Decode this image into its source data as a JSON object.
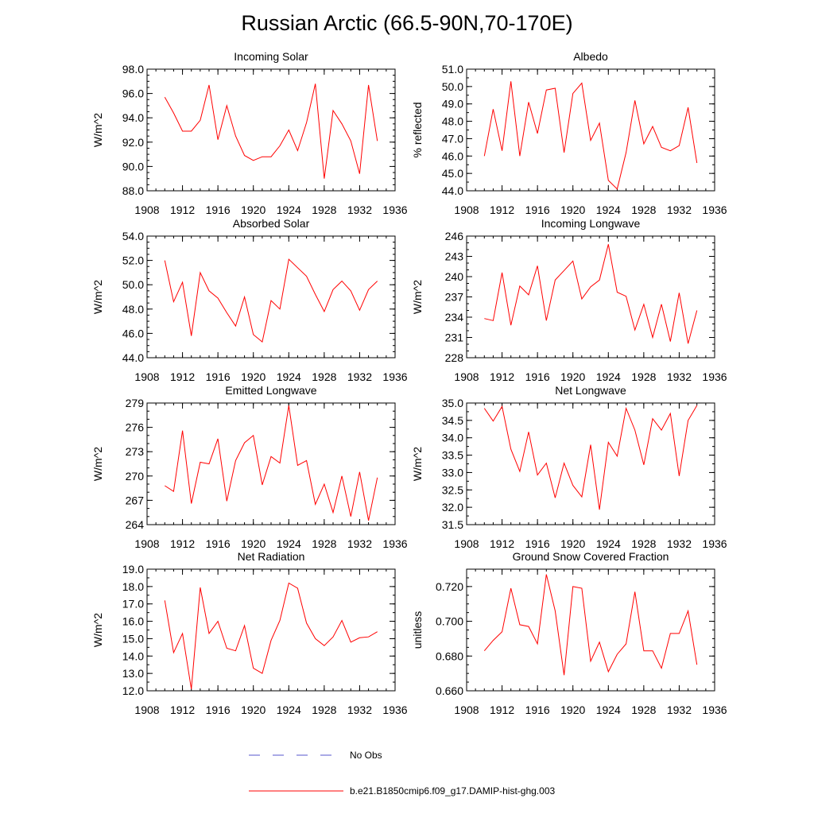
{
  "title": "Russian Arctic (66.5-90N,70-170E)",
  "legend": {
    "items": [
      {
        "label": "No Obs",
        "color": "#5555cc",
        "style": "dashed"
      },
      {
        "label": "b.e21.B1850cmip6.f09_g17.DAMIP-hist-ghg.003",
        "color": "#ff0000",
        "style": "solid"
      }
    ]
  },
  "chart_data": [
    {
      "type": "line",
      "title": "Incoming Solar",
      "xlabel": "",
      "ylabel": "W/m^2",
      "xlim": [
        1908,
        1936
      ],
      "ylim": [
        88,
        98
      ],
      "ytick_decimals": 1,
      "xticks": [
        1908,
        1912,
        1916,
        1920,
        1924,
        1928,
        1932,
        1936
      ],
      "yticks": [
        88,
        90,
        92,
        94,
        96,
        98
      ],
      "yticks_minor_step": 0.5,
      "series": [
        {
          "color": "#ff0000",
          "x": [
            1910,
            1911,
            1912,
            1913,
            1914,
            1915,
            1916,
            1917,
            1918,
            1919,
            1920,
            1921,
            1922,
            1923,
            1924,
            1925,
            1926,
            1927,
            1928,
            1929,
            1930,
            1931,
            1932,
            1933,
            1934
          ],
          "values": [
            95.7,
            94.4,
            92.9,
            92.9,
            93.8,
            96.7,
            92.2,
            95.0,
            92.5,
            90.9,
            90.5,
            90.8,
            90.8,
            91.7,
            93.0,
            91.3,
            93.6,
            96.8,
            89.0,
            94.6,
            93.5,
            92.1,
            89.4,
            96.7,
            92.1
          ]
        }
      ]
    },
    {
      "type": "line",
      "title": "Albedo",
      "xlabel": "",
      "ylabel": "% reflected",
      "xlim": [
        1908,
        1936
      ],
      "ylim": [
        44,
        51
      ],
      "ytick_decimals": 1,
      "xticks": [
        1908,
        1912,
        1916,
        1920,
        1924,
        1928,
        1932,
        1936
      ],
      "yticks": [
        44,
        45,
        46,
        47,
        48,
        49,
        50,
        51
      ],
      "yticks_minor_step": 0.5,
      "series": [
        {
          "color": "#ff0000",
          "x": [
            1910,
            1911,
            1912,
            1913,
            1914,
            1915,
            1916,
            1917,
            1918,
            1919,
            1920,
            1921,
            1922,
            1923,
            1924,
            1925,
            1926,
            1927,
            1928,
            1929,
            1930,
            1931,
            1932,
            1933,
            1934
          ],
          "values": [
            46.0,
            48.7,
            46.3,
            50.3,
            46.0,
            49.1,
            47.3,
            49.8,
            49.9,
            46.2,
            49.6,
            50.2,
            46.9,
            47.9,
            44.6,
            44.1,
            46.2,
            49.2,
            46.7,
            47.7,
            46.5,
            46.3,
            46.6,
            48.8,
            45.6
          ]
        }
      ]
    },
    {
      "type": "line",
      "title": "Absorbed Solar",
      "xlabel": "",
      "ylabel": "W/m^2",
      "xlim": [
        1908,
        1936
      ],
      "ylim": [
        44,
        54
      ],
      "ytick_decimals": 1,
      "xticks": [
        1908,
        1912,
        1916,
        1920,
        1924,
        1928,
        1932,
        1936
      ],
      "yticks": [
        44,
        46,
        48,
        50,
        52,
        54
      ],
      "yticks_minor_step": 0.5,
      "series": [
        {
          "color": "#ff0000",
          "x": [
            1910,
            1911,
            1912,
            1913,
            1914,
            1915,
            1916,
            1917,
            1918,
            1919,
            1920,
            1921,
            1922,
            1923,
            1924,
            1925,
            1926,
            1927,
            1928,
            1929,
            1930,
            1931,
            1932,
            1933,
            1934
          ],
          "values": [
            52.0,
            48.6,
            50.2,
            45.8,
            51.0,
            49.5,
            48.9,
            47.7,
            46.6,
            49.0,
            45.9,
            45.3,
            48.7,
            48.0,
            52.1,
            51.4,
            50.7,
            49.2,
            47.8,
            49.6,
            50.3,
            49.5,
            47.9,
            49.6,
            50.3
          ]
        }
      ]
    },
    {
      "type": "line",
      "title": "Incoming Longwave",
      "xlabel": "",
      "ylabel": "W/m^2",
      "xlim": [
        1908,
        1936
      ],
      "ylim": [
        228,
        246
      ],
      "ytick_decimals": 0,
      "xticks": [
        1908,
        1912,
        1916,
        1920,
        1924,
        1928,
        1932,
        1936
      ],
      "yticks": [
        228,
        231,
        234,
        237,
        240,
        243,
        246
      ],
      "yticks_minor_step": 1,
      "series": [
        {
          "color": "#ff0000",
          "x": [
            1910,
            1911,
            1912,
            1913,
            1914,
            1915,
            1916,
            1917,
            1918,
            1919,
            1920,
            1921,
            1922,
            1923,
            1924,
            1925,
            1926,
            1927,
            1928,
            1929,
            1930,
            1931,
            1932,
            1933,
            1934
          ],
          "values": [
            233.8,
            233.5,
            240.6,
            232.8,
            238.6,
            237.3,
            241.6,
            233.5,
            239.5,
            240.9,
            242.3,
            236.7,
            238.5,
            239.5,
            244.8,
            237.7,
            237.1,
            232.1,
            235.9,
            231.0,
            235.9,
            230.4,
            237.6,
            230.1,
            235.0
          ]
        }
      ]
    },
    {
      "type": "line",
      "title": "Emitted Longwave",
      "xlabel": "",
      "ylabel": "W/m^2",
      "xlim": [
        1908,
        1936
      ],
      "ylim": [
        264,
        279
      ],
      "ytick_decimals": 0,
      "xticks": [
        1908,
        1912,
        1916,
        1920,
        1924,
        1928,
        1932,
        1936
      ],
      "yticks": [
        264,
        267,
        270,
        273,
        276,
        279
      ],
      "yticks_minor_step": 1,
      "series": [
        {
          "color": "#ff0000",
          "x": [
            1910,
            1911,
            1912,
            1913,
            1914,
            1915,
            1916,
            1917,
            1918,
            1919,
            1920,
            1921,
            1922,
            1923,
            1924,
            1925,
            1926,
            1927,
            1928,
            1929,
            1930,
            1931,
            1932,
            1933,
            1934
          ],
          "values": [
            268.8,
            268.1,
            275.6,
            266.6,
            271.7,
            271.5,
            274.6,
            266.9,
            271.9,
            274.1,
            275.0,
            268.9,
            272.4,
            271.6,
            278.7,
            271.3,
            271.9,
            266.5,
            269.0,
            265.5,
            270.0,
            265.0,
            270.5,
            264.5,
            269.8
          ]
        }
      ]
    },
    {
      "type": "line",
      "title": "Net Longwave",
      "xlabel": "",
      "ylabel": "W/m^2",
      "xlim": [
        1908,
        1936
      ],
      "ylim": [
        31.5,
        35.0
      ],
      "ytick_decimals": 1,
      "xticks": [
        1908,
        1912,
        1916,
        1920,
        1924,
        1928,
        1932,
        1936
      ],
      "yticks": [
        31.5,
        32.0,
        32.5,
        33.0,
        33.5,
        34.0,
        34.5,
        35.0
      ],
      "yticks_minor_step": 0.25,
      "series": [
        {
          "color": "#ff0000",
          "x": [
            1910,
            1911,
            1912,
            1913,
            1914,
            1915,
            1916,
            1917,
            1918,
            1919,
            1920,
            1921,
            1922,
            1923,
            1924,
            1925,
            1926,
            1927,
            1928,
            1929,
            1930,
            1931,
            1932,
            1933,
            1934
          ],
          "values": [
            34.85,
            34.48,
            34.9,
            33.67,
            33.03,
            34.17,
            32.93,
            33.27,
            32.27,
            33.27,
            32.63,
            32.3,
            33.8,
            31.93,
            33.87,
            33.47,
            34.85,
            34.22,
            33.22,
            34.55,
            34.22,
            34.7,
            32.9,
            34.5,
            34.93
          ]
        }
      ]
    },
    {
      "type": "line",
      "title": "Net Radiation",
      "xlabel": "",
      "ylabel": "W/m^2",
      "xlim": [
        1908,
        1936
      ],
      "ylim": [
        12,
        19
      ],
      "ytick_decimals": 1,
      "xticks": [
        1908,
        1912,
        1916,
        1920,
        1924,
        1928,
        1932,
        1936
      ],
      "yticks": [
        12,
        13,
        14,
        15,
        16,
        17,
        18,
        19
      ],
      "yticks_minor_step": 0.5,
      "series": [
        {
          "color": "#ff0000",
          "x": [
            1910,
            1911,
            1912,
            1913,
            1914,
            1915,
            1916,
            1917,
            1918,
            1919,
            1920,
            1921,
            1922,
            1923,
            1924,
            1925,
            1926,
            1927,
            1928,
            1929,
            1930,
            1931,
            1932,
            1933,
            1934
          ],
          "values": [
            17.2,
            14.2,
            15.3,
            12.1,
            17.95,
            15.3,
            16.0,
            14.45,
            14.3,
            15.75,
            13.3,
            13.0,
            14.9,
            16.05,
            18.2,
            17.9,
            15.9,
            15.0,
            14.6,
            15.1,
            16.05,
            14.8,
            15.05,
            15.1,
            15.4
          ]
        }
      ]
    },
    {
      "type": "line",
      "title": "Ground Snow Covered Fraction",
      "xlabel": "",
      "ylabel": "unitless",
      "xlim": [
        1908,
        1936
      ],
      "ylim": [
        0.66,
        0.73
      ],
      "ytick_decimals": 3,
      "xticks": [
        1908,
        1912,
        1916,
        1920,
        1924,
        1928,
        1932,
        1936
      ],
      "yticks": [
        0.66,
        0.68,
        0.7,
        0.72
      ],
      "yticks_minor_step": 0.005,
      "series": [
        {
          "color": "#ff0000",
          "x": [
            1910,
            1911,
            1912,
            1913,
            1914,
            1915,
            1916,
            1917,
            1918,
            1919,
            1920,
            1921,
            1922,
            1923,
            1924,
            1925,
            1926,
            1927,
            1928,
            1929,
            1930,
            1931,
            1932,
            1933,
            1934
          ],
          "values": [
            0.683,
            0.689,
            0.694,
            0.719,
            0.698,
            0.697,
            0.687,
            0.727,
            0.706,
            0.669,
            0.72,
            0.719,
            0.677,
            0.688,
            0.671,
            0.681,
            0.687,
            0.717,
            0.683,
            0.683,
            0.673,
            0.693,
            0.693,
            0.706,
            0.675
          ]
        }
      ]
    }
  ]
}
